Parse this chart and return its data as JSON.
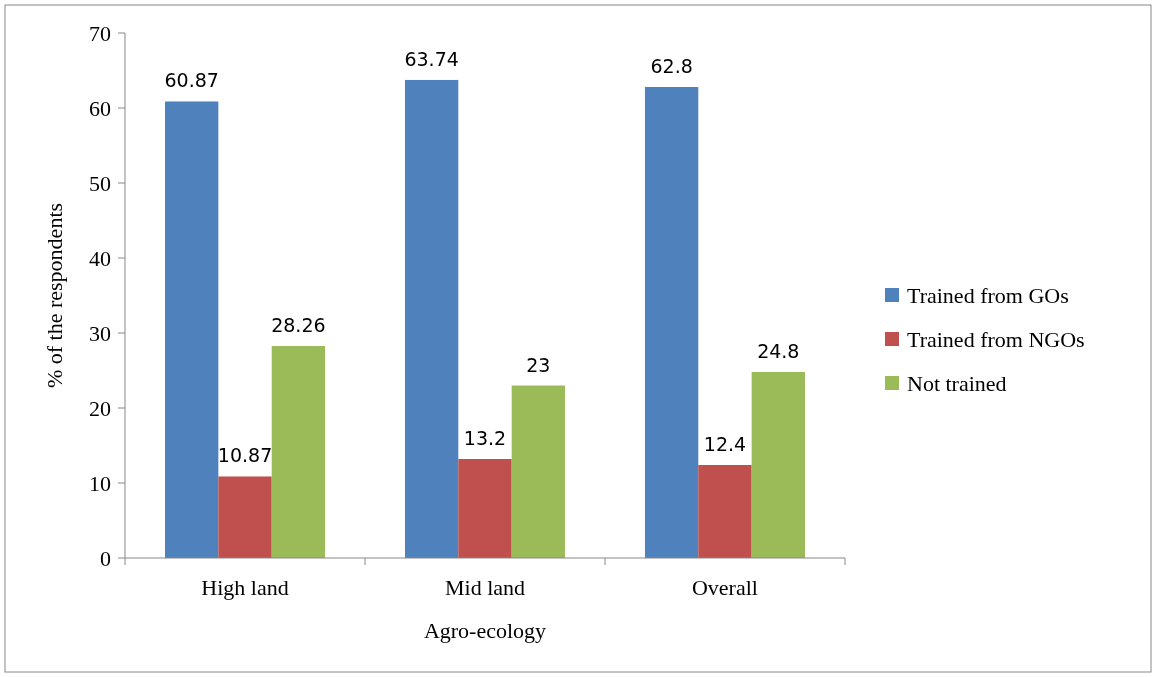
{
  "chart_data": {
    "type": "bar",
    "xlabel": "Agro-ecology",
    "ylabel": "% of the respondents",
    "categories": [
      "High land",
      "Mid land",
      "Overall"
    ],
    "series": [
      {
        "name": "Trained from GOs",
        "color": "#4f81bd",
        "values": [
          60.87,
          63.74,
          62.8
        ]
      },
      {
        "name": "Trained from NGOs",
        "color": "#c0504d",
        "values": [
          10.87,
          13.2,
          12.4
        ]
      },
      {
        "name": "Not trained",
        "color": "#9bbb59",
        "values": [
          28.26,
          23,
          24.8
        ]
      }
    ],
    "ylim": [
      0,
      70
    ],
    "yticks": [
      0,
      10,
      20,
      30,
      40,
      50,
      60,
      70
    ],
    "data_labels": true,
    "grid": false,
    "legend": "right"
  }
}
